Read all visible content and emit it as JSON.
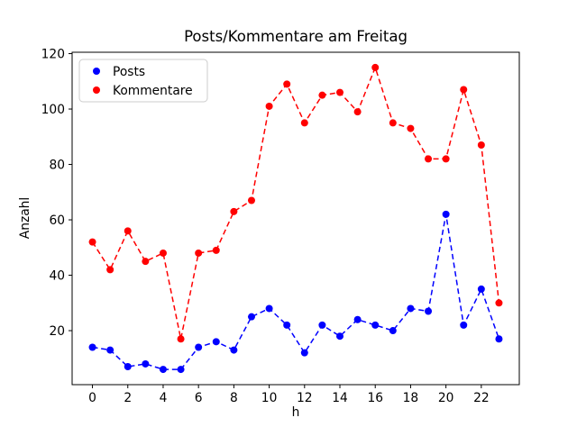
{
  "figure": {
    "title": "Posts/Kommentare am Freitag",
    "xlabel": "h",
    "ylabel": "Anzahl"
  },
  "chart_data": {
    "type": "line",
    "title": "Posts/Kommentare am Freitag",
    "xlabel": "h",
    "ylabel": "Anzahl",
    "line_style": "dashed",
    "marker": "circle",
    "grid": false,
    "legend_position": "upper left",
    "x": [
      0,
      1,
      2,
      3,
      4,
      5,
      6,
      7,
      8,
      9,
      10,
      11,
      12,
      13,
      14,
      15,
      16,
      17,
      18,
      19,
      20,
      21,
      22,
      23
    ],
    "series": [
      {
        "name": "Posts",
        "color": "#0000ff",
        "values": [
          14,
          13,
          7,
          8,
          6,
          6,
          14,
          16,
          13,
          25,
          28,
          22,
          12,
          22,
          18,
          24,
          22,
          20,
          28,
          27,
          62,
          22,
          35,
          17
        ]
      },
      {
        "name": "Kommentare",
        "color": "#ff0000",
        "values": [
          52,
          42,
          56,
          45,
          48,
          17,
          48,
          49,
          63,
          67,
          101,
          109,
          95,
          105,
          106,
          99,
          115,
          95,
          93,
          82,
          82,
          107,
          87,
          30
        ]
      }
    ],
    "xticks": [
      0,
      2,
      4,
      6,
      8,
      10,
      12,
      14,
      16,
      18,
      20,
      22
    ],
    "yticks": [
      20,
      40,
      60,
      80,
      100,
      120
    ],
    "xlim": [
      -1.15,
      24.15
    ],
    "ylim": [
      0.5,
      120.5
    ]
  }
}
